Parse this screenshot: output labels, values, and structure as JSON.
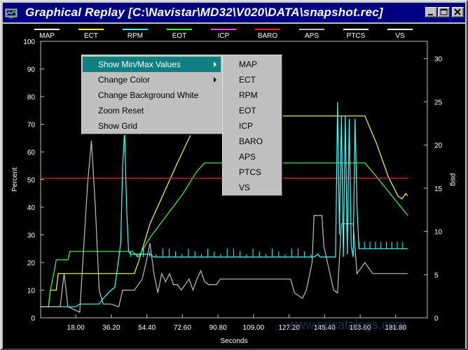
{
  "window": {
    "title": "Graphical Replay [C:\\Navistar\\MD32\\V020\\DATA\\snapshot.rec]",
    "buttons": [
      "minimize",
      "maximize",
      "close"
    ]
  },
  "legend": [
    {
      "name": "MAP",
      "color": "#ffffff"
    },
    {
      "name": "ECT",
      "color": "#ffff40"
    },
    {
      "name": "RPM",
      "color": "#40ffff"
    },
    {
      "name": "EOT",
      "color": "#40ff40"
    },
    {
      "name": "ICP",
      "color": "#ff40ff"
    },
    {
      "name": "BARO",
      "color": "#ff2020"
    },
    {
      "name": "APS",
      "color": "#c0c0c0"
    },
    {
      "name": "PTCS",
      "color": "#ffffff"
    },
    {
      "name": "VS",
      "color": "#ffffff"
    }
  ],
  "context_menu": {
    "items": [
      {
        "label": "Show Min/Max Values",
        "submenu": true,
        "selected": true
      },
      {
        "label": "Change Color",
        "submenu": true,
        "selected": false
      },
      {
        "label": "Change Background White",
        "submenu": false,
        "selected": false
      },
      {
        "label": "Zoom Reset",
        "submenu": false,
        "selected": false
      },
      {
        "label": "Show Grid",
        "submenu": false,
        "selected": false
      }
    ],
    "submenu_items": [
      "MAP",
      "ECT",
      "RPM",
      "EOT",
      "ICP",
      "BARO",
      "APS",
      "PTCS",
      "VS"
    ]
  },
  "watermark": "www.epcatalogs.com",
  "chart_data": {
    "type": "line",
    "xlabel": "Seconds",
    "ylabel": "Percent",
    "y2label": "psig",
    "xlim": [
      0,
      198
    ],
    "ylim": [
      0,
      100
    ],
    "y2lim": [
      0,
      32
    ],
    "x_ticks": [
      "18.00",
      "36.20",
      "54.40",
      "72.60",
      "90.80",
      "109.00",
      "127.20",
      "145.40",
      "163.60",
      "181.80"
    ],
    "y_ticks": [
      "0",
      "10",
      "20",
      "30",
      "40",
      "50",
      "60",
      "70",
      "80",
      "90",
      "100"
    ],
    "y2_ticks": [
      "0",
      "5",
      "10",
      "15",
      "20",
      "25",
      "30"
    ],
    "grid": false,
    "legend_position": "top",
    "series": [
      {
        "name": "ECT",
        "color": "#ffff40",
        "points": [
          [
            0,
            4
          ],
          [
            4,
            4
          ],
          [
            5,
            10
          ],
          [
            8,
            10
          ],
          [
            9,
            16
          ],
          [
            48,
            16
          ],
          [
            50,
            20
          ],
          [
            56,
            34
          ],
          [
            70,
            56
          ],
          [
            78,
            68
          ],
          [
            84,
            73
          ],
          [
            166,
            73
          ],
          [
            172,
            63
          ],
          [
            178,
            51
          ],
          [
            183,
            44
          ],
          [
            185,
            43
          ],
          [
            187,
            45
          ],
          [
            188,
            44
          ]
        ]
      },
      {
        "name": "EOT",
        "color": "#40ff40",
        "points": [
          [
            0,
            4
          ],
          [
            4,
            4
          ],
          [
            5,
            10
          ],
          [
            7,
            17
          ],
          [
            8,
            21
          ],
          [
            14,
            21
          ],
          [
            15,
            24
          ],
          [
            47,
            24
          ],
          [
            50,
            22
          ],
          [
            56,
            29
          ],
          [
            73,
            45
          ],
          [
            80,
            53
          ],
          [
            84,
            56
          ],
          [
            160,
            56
          ],
          [
            166,
            56
          ],
          [
            172,
            51
          ],
          [
            180,
            44
          ],
          [
            188,
            37
          ]
        ]
      },
      {
        "name": "BARO",
        "color": "#ff2020",
        "points": [
          [
            0,
            50.5
          ],
          [
            188,
            50.5
          ]
        ]
      },
      {
        "name": "RPM",
        "color": "#40ffff",
        "points": [
          [
            0,
            4
          ],
          [
            14,
            4
          ],
          [
            18,
            4
          ],
          [
            20,
            5
          ],
          [
            30,
            5
          ],
          [
            32,
            7
          ],
          [
            36,
            10
          ],
          [
            38,
            11
          ],
          [
            41,
            27
          ],
          [
            42,
            55
          ],
          [
            43,
            68
          ],
          [
            44,
            40
          ],
          [
            45,
            24
          ],
          [
            46,
            23
          ],
          [
            56,
            23
          ],
          [
            58,
            22
          ],
          [
            140,
            22
          ],
          [
            142,
            23
          ],
          [
            143,
            22
          ],
          [
            151,
            22
          ],
          [
            152,
            78
          ],
          [
            153,
            30
          ],
          [
            154,
            73
          ],
          [
            155,
            22
          ],
          [
            156,
            73
          ],
          [
            157,
            23
          ],
          [
            158,
            72
          ],
          [
            159,
            26
          ],
          [
            160,
            22
          ],
          [
            161,
            72
          ],
          [
            162,
            40
          ],
          [
            163,
            25
          ],
          [
            188,
            25
          ]
        ]
      },
      {
        "name": "APS",
        "color": "#c0c0c0",
        "points": [
          [
            0,
            4
          ],
          [
            10,
            4
          ],
          [
            12,
            16
          ],
          [
            14,
            4
          ],
          [
            20,
            2
          ],
          [
            24,
            48
          ],
          [
            26,
            64
          ],
          [
            28,
            40
          ],
          [
            30,
            10
          ],
          [
            32,
            5
          ],
          [
            36,
            5
          ],
          [
            40,
            4
          ],
          [
            42,
            10
          ],
          [
            48,
            10
          ],
          [
            52,
            14
          ],
          [
            54,
            20
          ],
          [
            56,
            27
          ],
          [
            58,
            16
          ],
          [
            60,
            9
          ],
          [
            62,
            16
          ],
          [
            64,
            13
          ],
          [
            66,
            16
          ],
          [
            68,
            12
          ],
          [
            70,
            12
          ],
          [
            72,
            10
          ],
          [
            74,
            12
          ],
          [
            76,
            14
          ],
          [
            78,
            10
          ],
          [
            80,
            14
          ],
          [
            82,
            17
          ],
          [
            84,
            13
          ],
          [
            86,
            12
          ],
          [
            90,
            12
          ],
          [
            92,
            14
          ],
          [
            128,
            14
          ],
          [
            130,
            9
          ],
          [
            134,
            7
          ],
          [
            136,
            10
          ],
          [
            139,
            20
          ],
          [
            140,
            37
          ],
          [
            144,
            37
          ],
          [
            145,
            26
          ],
          [
            150,
            10
          ],
          [
            152,
            9
          ],
          [
            154,
            34
          ],
          [
            160,
            34
          ],
          [
            162,
            16
          ],
          [
            166,
            20
          ],
          [
            170,
            16
          ],
          [
            188,
            16
          ]
        ]
      }
    ]
  }
}
